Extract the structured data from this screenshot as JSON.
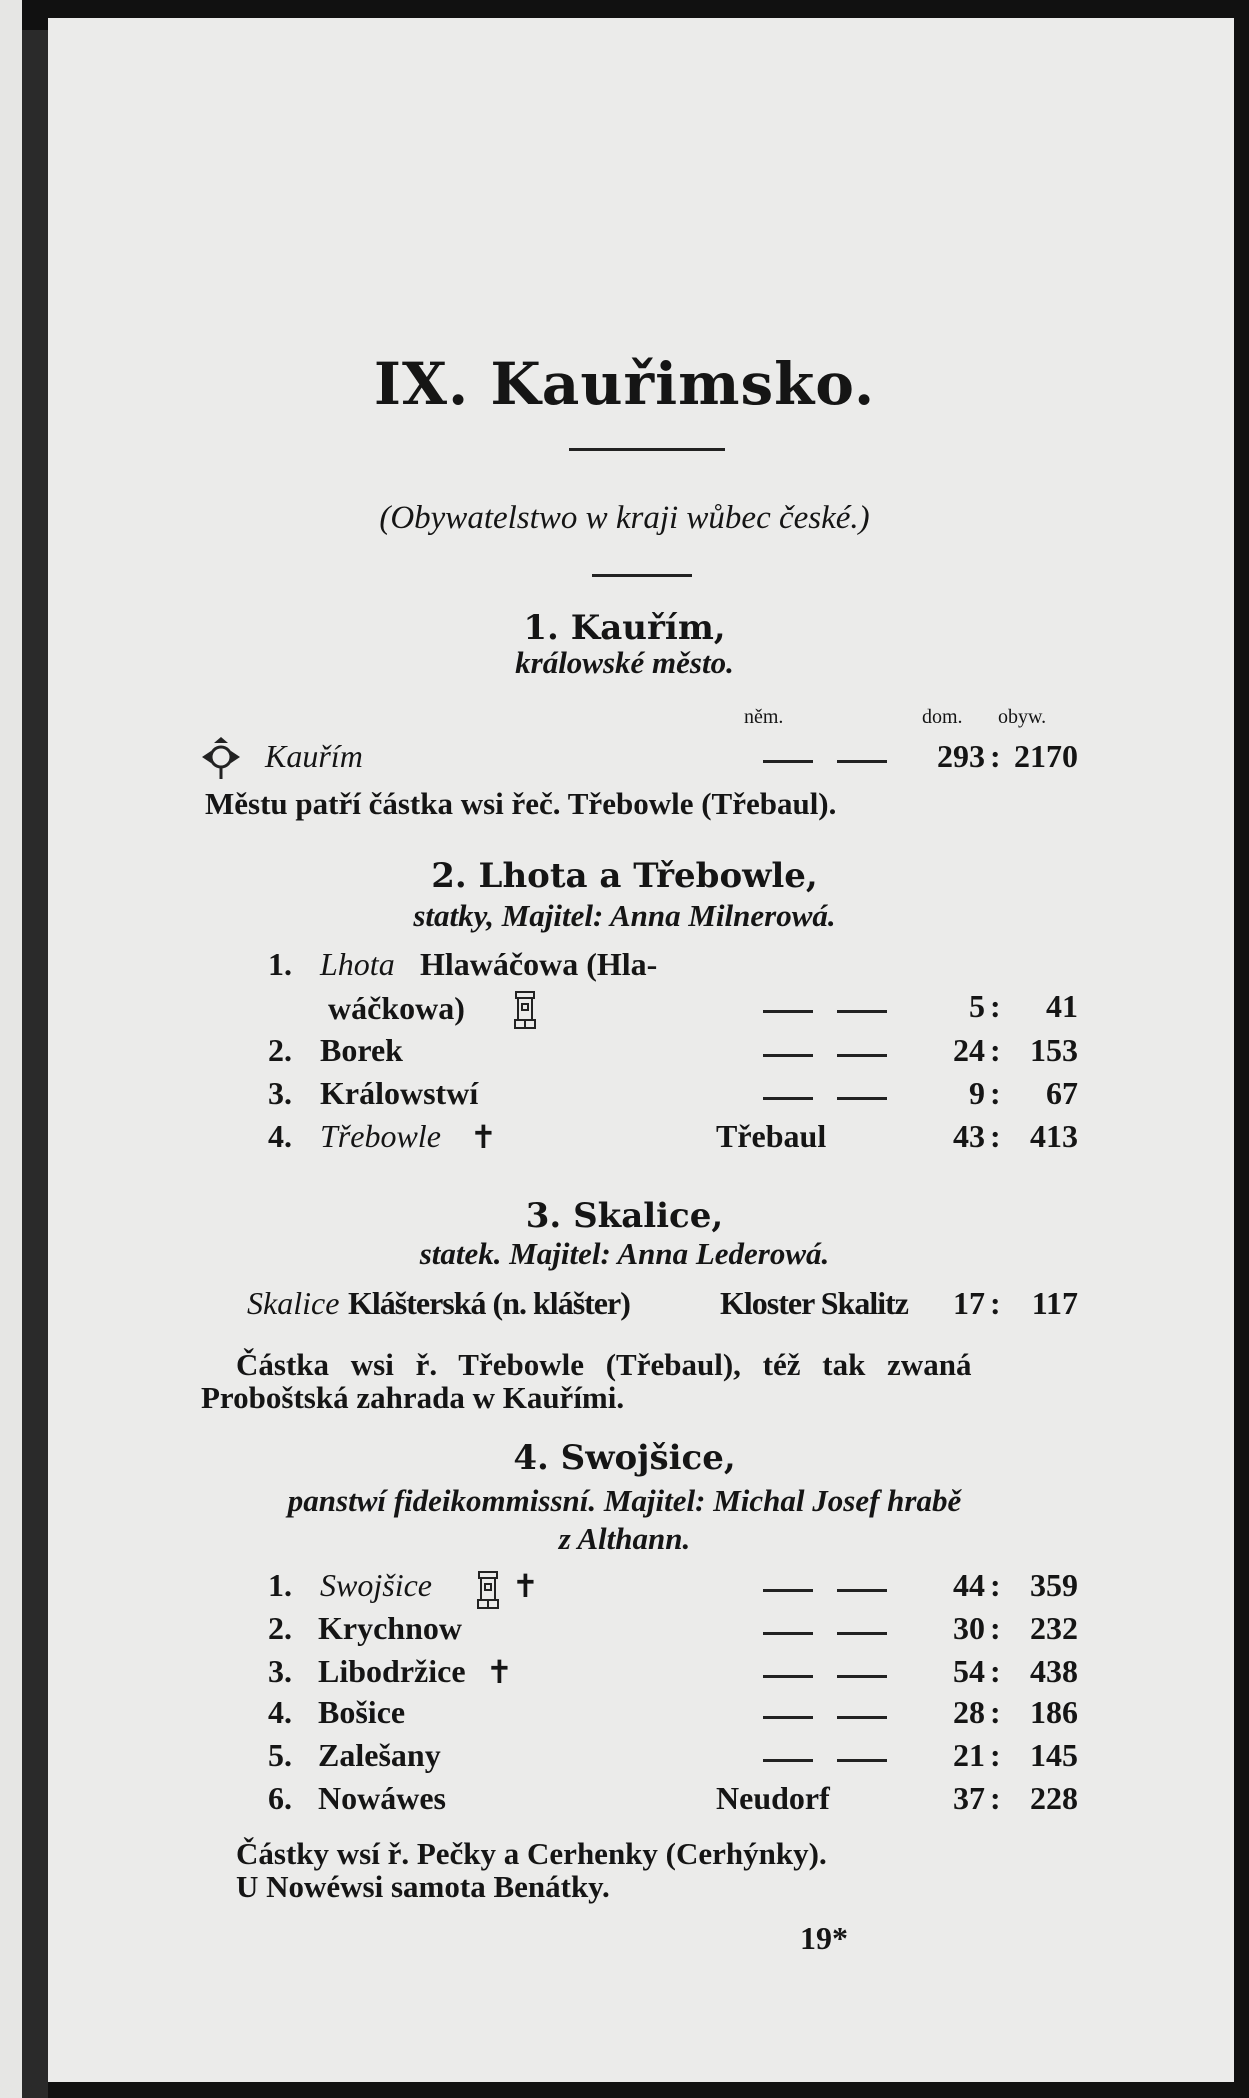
{
  "title": "IX. Kauřimsko.",
  "subtitle": "(Obywatelstwo w kraji wůbec české.)",
  "column_headers": {
    "nem": "něm.",
    "dom": "dom.",
    "obyw": "obyw."
  },
  "sections": [
    {
      "heading": "1. Kauřím,",
      "subheading": "králowské město.",
      "entries": [
        {
          "name": "Kauřím",
          "symbol": "town-crest-icon",
          "german": "—",
          "dom": "293",
          "obyw": "2170"
        }
      ],
      "notes": [
        "Městu patří částka wsi řeč. Třebowle (Třebaul)."
      ]
    },
    {
      "heading": "2. Lhota a Třebowle,",
      "subheading": "statky, Majitel: Anna Milnerowá.",
      "entries": [
        {
          "num": "1.",
          "name_italic": "Lhota",
          "name_rest": "Hlawáčowa (Hla-",
          "name_line2": "wáčkowa)",
          "symbol": "castle-tower-icon",
          "dom": "5",
          "obyw": "41"
        },
        {
          "num": "2.",
          "name": "Borek",
          "dom": "24",
          "obyw": "153"
        },
        {
          "num": "3.",
          "name": "Králowstwí",
          "dom": "9",
          "obyw": "67"
        },
        {
          "num": "4.",
          "name_italic": "Třebowle",
          "symbol": "church-cross-icon",
          "german": "Třebaul",
          "dom": "43",
          "obyw": "413"
        }
      ]
    },
    {
      "heading": "3. Skalice,",
      "subheading": "statek. Majitel: Anna Lederowá.",
      "entries": [
        {
          "name_italic": "Skalice",
          "name_rest": "Klášterská (n. klášter)",
          "german": "Kloster Skalitz",
          "dom": "17",
          "obyw": "117"
        }
      ],
      "notes": [
        "Částka wsi ř. Třebowle (Třebaul), též tak zwaná",
        "Proboštská zahrada w Kauřími."
      ]
    },
    {
      "heading": "4. Swojšice,",
      "subheading": "panstwí fideikommissní. Majitel: Michal Josef hrabě",
      "subheading2": "z Althann.",
      "entries": [
        {
          "num": "1.",
          "name_italic": "Swojšice",
          "symbol": "castle-tower-icon church-cross-icon",
          "dom": "44",
          "obyw": "359"
        },
        {
          "num": "2.",
          "name": "Krychnow",
          "dom": "30",
          "obyw": "232"
        },
        {
          "num": "3.",
          "name": "Libodržice",
          "symbol": "church-cross-icon",
          "dom": "54",
          "obyw": "438"
        },
        {
          "num": "4.",
          "name": "Bošice",
          "dom": "28",
          "obyw": "186"
        },
        {
          "num": "5.",
          "name": "Zalešany",
          "dom": "21",
          "obyw": "145"
        },
        {
          "num": "6.",
          "name": "Nowáwes",
          "german": "Neudorf",
          "dom": "37",
          "obyw": "228"
        }
      ],
      "notes": [
        "Částky wsí ř. Pečky a Cerhenky (Cerhýnky).",
        "U Nowéwsi samota Benátky."
      ]
    }
  ],
  "page_number": "19*",
  "glyphs": {
    "cross": "✝",
    "colon": ":"
  }
}
